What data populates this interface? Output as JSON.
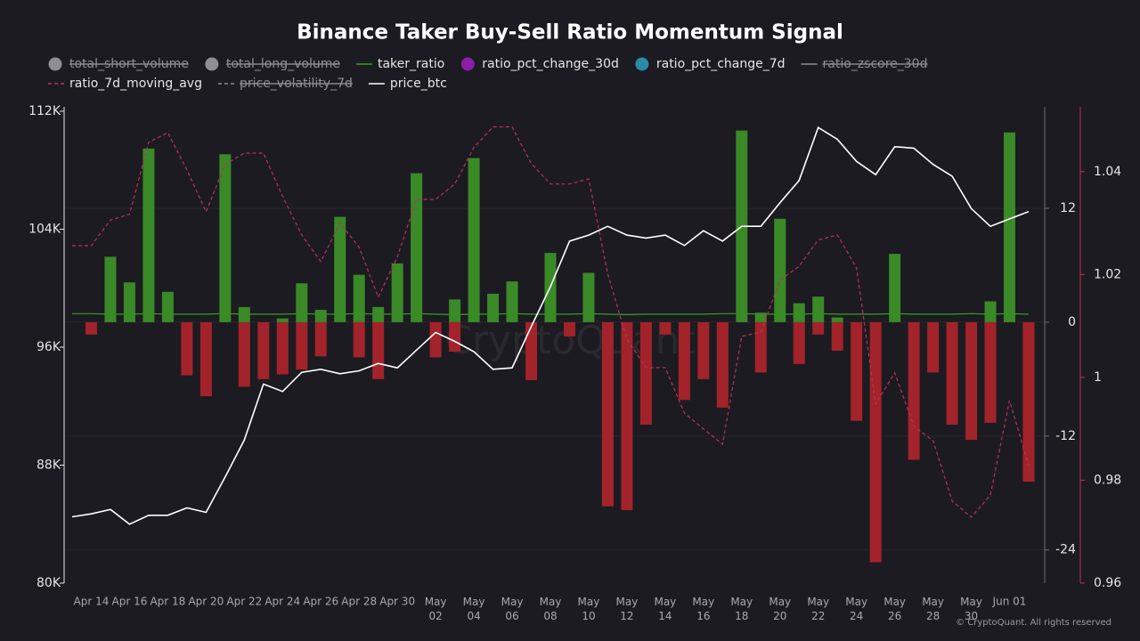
{
  "chart_data": {
    "type": "bar",
    "title": "Binance Taker Buy-Sell Ratio Momentum Signal",
    "watermark": "CryptoQuant",
    "footer": "© CryptoQuant. All rights reserved",
    "categories": [
      null,
      "Apr 14",
      null,
      "Apr 16",
      null,
      "Apr 18",
      null,
      "Apr 20",
      null,
      "Apr 22",
      null,
      "Apr 24",
      null,
      "Apr 26",
      null,
      "Apr 28",
      null,
      "Apr 30",
      null,
      "May 02",
      null,
      "May 04",
      null,
      "May 06",
      null,
      "May 08",
      null,
      "May 10",
      null,
      "May 12",
      null,
      "May 14",
      null,
      "May 16",
      null,
      "May 18",
      null,
      "May 20",
      null,
      "May 22",
      null,
      "May 24",
      null,
      "May 26",
      null,
      "May 28",
      null,
      "May 30",
      null,
      "Jun 01",
      null
    ],
    "ylim": [
      80000,
      112000
    ],
    "yticks": [
      {
        "value": 80000,
        "label": "80K"
      },
      {
        "value": 88000,
        "label": "88K"
      },
      {
        "value": 96000,
        "label": "96K"
      },
      {
        "value": 104000,
        "label": "104K"
      },
      {
        "value": 112000,
        "label": "112K"
      }
    ],
    "y2lim": [
      -27.5,
      22.7
    ],
    "y2ticks": [
      -24,
      -12,
      0,
      12
    ],
    "y3lim": [
      0.96,
      1.0526
    ],
    "y3ticks": [
      0.96,
      0.98,
      1,
      1.02,
      1.04
    ],
    "grid": true,
    "bar_colors": {
      "up": "#3a8a27",
      "down": "#a3232a"
    },
    "series": [
      {
        "name": "total_short_volume",
        "type": "bar",
        "hidden": true,
        "color": "#8e8e93"
      },
      {
        "name": "total_long_volume",
        "type": "bar",
        "hidden": true,
        "color": "#8e8e93"
      },
      {
        "name": "taker_ratio",
        "type": "line",
        "axis": "y2",
        "color": "#3c9a2c",
        "values": [
          0.9,
          0.9,
          0.85,
          0.85,
          0.9,
          0.85,
          0.85,
          0.85,
          0.9,
          0.85,
          0.85,
          0.85,
          0.9,
          0.85,
          0.85,
          0.9,
          0.85,
          0.85,
          0.9,
          0.85,
          0.8,
          0.85,
          0.85,
          0.9,
          0.85,
          0.85,
          0.85,
          0.9,
          0.85,
          0.8,
          0.85,
          0.85,
          0.85,
          0.85,
          0.9,
          0.9,
          0.85,
          0.85,
          0.85,
          0.9,
          0.85,
          0.85,
          0.85,
          0.9,
          0.85,
          0.85,
          0.85,
          0.9,
          0.85,
          0.9,
          0.85
        ]
      },
      {
        "name": "ratio_pct_change_30d",
        "type": "bar",
        "axis": "y2",
        "color": "#8b1fa9",
        "values": [
          null,
          null,
          6.9,
          4.2,
          18.3,
          3.2,
          null,
          null,
          17.7,
          1.6,
          null,
          0.4,
          4.1,
          1.3,
          11.1,
          5.0,
          1.6,
          6.2,
          15.7,
          null,
          2.4,
          17.3,
          3.0,
          4.3,
          null,
          7.3,
          null,
          5.2,
          null,
          null,
          null,
          null,
          null,
          null,
          null,
          20.2,
          1.0,
          10.9,
          2.0,
          2.7,
          0.5,
          null,
          null,
          7.2,
          null,
          null,
          null,
          null,
          2.2,
          20.0,
          null
        ]
      },
      {
        "name": "ratio_pct_change_7d",
        "type": "bar",
        "axis": "y2",
        "color": "#2a8aa8",
        "values": [
          null,
          -1.3,
          null,
          null,
          null,
          null,
          -5.6,
          -7.8,
          null,
          -6.8,
          -6.0,
          -5.5,
          -5.0,
          -3.6,
          null,
          -3.7,
          -6.0,
          null,
          null,
          -3.7,
          -3.1,
          null,
          null,
          null,
          -6.1,
          null,
          -1.5,
          null,
          -19.4,
          -19.8,
          -10.8,
          -1.3,
          -8.2,
          -6.0,
          -9.0,
          null,
          -5.3,
          null,
          -4.4,
          -1.3,
          -3.0,
          -10.4,
          -25.3,
          null,
          -14.5,
          -5.3,
          -10.8,
          -12.4,
          -10.6,
          null,
          -16.8
        ]
      },
      {
        "name": "ratio_zscore_30d",
        "type": "line",
        "hidden": true,
        "color": "#8e8e93"
      },
      {
        "name": "ratio_7d_moving_avg",
        "type": "line",
        "axis": "y3",
        "dashed": true,
        "color": "#b8335a",
        "values": [
          1.0256,
          1.0256,
          1.0306,
          1.0317,
          1.0457,
          1.0476,
          1.0403,
          1.0322,
          1.0414,
          1.0436,
          1.0436,
          1.0352,
          1.0277,
          1.0225,
          1.03,
          1.0253,
          1.0156,
          1.0234,
          1.0346,
          1.0346,
          1.0376,
          1.0447,
          1.0487,
          1.0487,
          1.0416,
          1.0376,
          1.0376,
          1.0386,
          1.0201,
          1.0074,
          1.0019,
          1.0019,
          0.9931,
          0.99,
          0.987,
          1.008,
          1.0088,
          1.0189,
          1.0216,
          1.0267,
          1.0277,
          1.0213,
          0.9948,
          1.0009,
          0.9905,
          0.9877,
          0.976,
          0.9728,
          0.9771,
          0.9955,
          0.9829
        ]
      },
      {
        "name": "price_volatility_7d",
        "type": "line",
        "hidden": true,
        "dashed": true,
        "color": "#8e8e93"
      },
      {
        "name": "price_btc",
        "type": "line",
        "axis": "y",
        "color": "#ffffff",
        "values": [
          84500,
          84700,
          85000,
          84000,
          84600,
          84600,
          85100,
          84800,
          87200,
          89700,
          93500,
          93000,
          94300,
          94500,
          94200,
          94400,
          94900,
          94600,
          95800,
          97000,
          96400,
          95700,
          94500,
          94600,
          97400,
          100100,
          103200,
          103600,
          104200,
          103600,
          103400,
          103600,
          102900,
          103900,
          103200,
          104200,
          104200,
          105800,
          107300,
          110900,
          110100,
          108600,
          107700,
          109600,
          109500,
          108400,
          107600,
          105400,
          104200,
          104700,
          105200
        ]
      }
    ]
  }
}
